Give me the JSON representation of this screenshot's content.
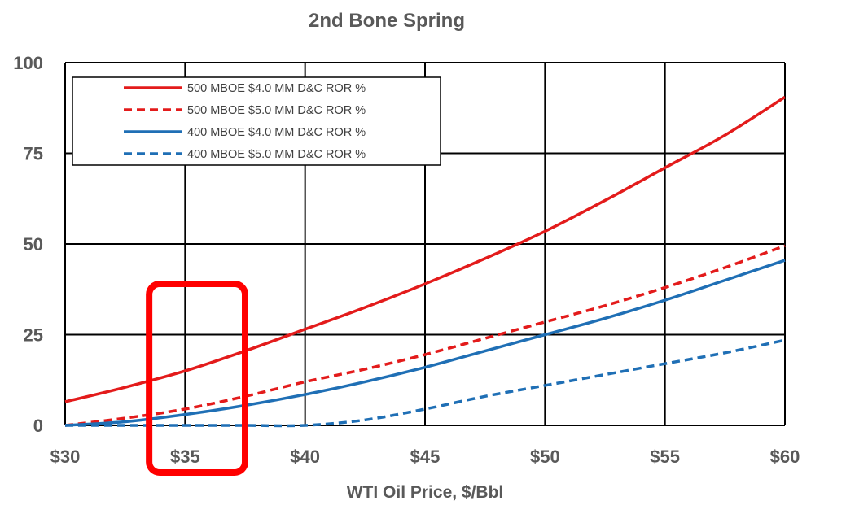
{
  "chart_data": {
    "type": "line",
    "title": "2nd Bone Spring",
    "xlabel": "WTI Oil Price, $/Bbl",
    "ylabel": "",
    "xlim": [
      30,
      60
    ],
    "ylim": [
      0,
      100
    ],
    "x_ticks": [
      30,
      35,
      40,
      45,
      50,
      55,
      60
    ],
    "x_tick_labels": [
      "$30",
      "$35",
      "$40",
      "$45",
      "$50",
      "$55",
      "$60"
    ],
    "y_ticks": [
      0,
      25,
      50,
      75,
      100
    ],
    "y_tick_labels": [
      "0",
      "25",
      "50",
      "75",
      "100"
    ],
    "grid": true,
    "legend_position": "top-left",
    "series": [
      {
        "name": "500 MBOE $4.0 MM D&C ROR %",
        "color": "#e31b1b",
        "dash": "solid",
        "x": [
          30,
          32.5,
          35,
          37.5,
          40,
          42.5,
          45,
          47.5,
          50,
          52.5,
          55,
          57.5,
          60
        ],
        "y": [
          6.5,
          10.5,
          15,
          20.5,
          26.5,
          32.5,
          39,
          46,
          53.5,
          62,
          71,
          80,
          90.5
        ]
      },
      {
        "name": "500 MBOE $5.0 MM D&C ROR %",
        "color": "#e31b1b",
        "dash": "dashed",
        "x": [
          30,
          32.5,
          35,
          37.5,
          40,
          42.5,
          45,
          47.5,
          50,
          52.5,
          55,
          57.5,
          60
        ],
        "y": [
          0,
          2,
          4.5,
          8,
          12,
          15.5,
          19.5,
          24,
          28.5,
          33,
          38,
          43.5,
          49.5
        ]
      },
      {
        "name": "400 MBOE $4.0 MM D&C ROR %",
        "color": "#1f6fb5",
        "dash": "solid",
        "x": [
          30,
          32.5,
          35,
          37.5,
          40,
          42.5,
          45,
          47.5,
          50,
          52.5,
          55,
          57.5,
          60
        ],
        "y": [
          0,
          1,
          3,
          5.5,
          8.5,
          12,
          16,
          20.5,
          25,
          29.5,
          34.5,
          40,
          45.5
        ]
      },
      {
        "name": "400 MBOE $5.0 MM D&C ROR %",
        "color": "#1f6fb5",
        "dash": "dashed",
        "x": [
          30,
          32.5,
          35,
          37.5,
          40,
          42.5,
          45,
          47.5,
          50,
          52.5,
          55,
          57.5,
          60
        ],
        "y": [
          0,
          0,
          0,
          0,
          0,
          1.5,
          4.5,
          8,
          11,
          14,
          17,
          20,
          23.5
        ]
      }
    ],
    "highlight_box": {
      "x_range": [
        33.5,
        37.5
      ],
      "y_range": [
        -13,
        39
      ],
      "color": "#ff0000"
    }
  }
}
